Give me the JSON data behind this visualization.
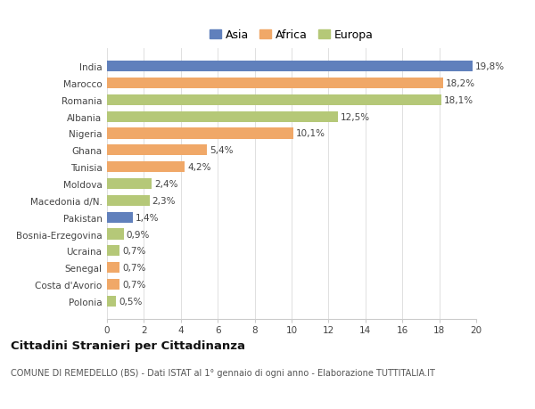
{
  "categories": [
    "India",
    "Marocco",
    "Romania",
    "Albania",
    "Nigeria",
    "Ghana",
    "Tunisia",
    "Moldova",
    "Macedonia d/N.",
    "Pakistan",
    "Bosnia-Erzegovina",
    "Ucraina",
    "Senegal",
    "Costa d'Avorio",
    "Polonia"
  ],
  "values": [
    19.8,
    18.2,
    18.1,
    12.5,
    10.1,
    5.4,
    4.2,
    2.4,
    2.3,
    1.4,
    0.9,
    0.7,
    0.7,
    0.7,
    0.5
  ],
  "labels": [
    "19,8%",
    "18,2%",
    "18,1%",
    "12,5%",
    "10,1%",
    "5,4%",
    "4,2%",
    "2,4%",
    "2,3%",
    "1,4%",
    "0,9%",
    "0,7%",
    "0,7%",
    "0,7%",
    "0,5%"
  ],
  "continents": [
    "Asia",
    "Africa",
    "Europa",
    "Europa",
    "Africa",
    "Africa",
    "Africa",
    "Europa",
    "Europa",
    "Asia",
    "Europa",
    "Europa",
    "Africa",
    "Africa",
    "Europa"
  ],
  "colors": {
    "Asia": "#6080bc",
    "Africa": "#f0a868",
    "Europa": "#b5c878"
  },
  "title": "Cittadini Stranieri per Cittadinanza",
  "subtitle": "COMUNE DI REMEDELLO (BS) - Dati ISTAT al 1° gennaio di ogni anno - Elaborazione TUTTITALIA.IT",
  "xlim": [
    0,
    20
  ],
  "xticks": [
    0,
    2,
    4,
    6,
    8,
    10,
    12,
    14,
    16,
    18,
    20
  ],
  "background_color": "#ffffff",
  "grid_color": "#e0e0e0"
}
